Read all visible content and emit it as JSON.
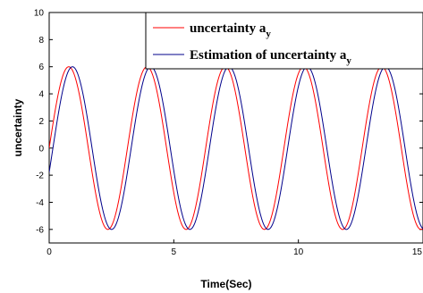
{
  "chart_data": {
    "type": "line",
    "title": "",
    "xlabel": "Time(Sec)",
    "ylabel": "uncertainty",
    "xlim": [
      0,
      15
    ],
    "ylim": [
      -7,
      10
    ],
    "x_ticks": [
      "0",
      "5",
      "10",
      "15"
    ],
    "y_ticks": [
      "-6",
      "-4",
      "-2",
      "0",
      "2",
      "4",
      "6",
      "8",
      "10"
    ],
    "grid": false,
    "legend_position": "top-right",
    "series": [
      {
        "name": "uncertainty a",
        "name_subscript": "y",
        "color": "#ff0000",
        "amplitude": 6,
        "period": 3.14,
        "phase_shift": 0,
        "x": [
          0,
          0.4,
          0.8,
          1.2,
          1.6,
          2.0,
          2.4,
          2.8,
          3.2,
          3.6,
          4.0,
          4.4,
          4.8,
          5.2,
          5.6,
          6.0,
          6.4,
          6.8,
          7.2,
          7.6,
          8.0,
          8.4,
          8.8,
          9.2,
          9.6,
          10.0,
          10.4,
          10.8,
          11.2,
          11.6,
          12.0,
          12.4,
          12.8,
          13.2,
          13.6,
          14.0,
          14.4,
          14.8,
          15.0
        ],
        "y": [
          0,
          4.3,
          6.0,
          4.0,
          -0.3,
          -4.5,
          -6.0,
          -3.8,
          0.7,
          4.8,
          5.9,
          3.4,
          -1.2,
          -5.1,
          -5.8,
          -3.0,
          1.6,
          5.3,
          5.7,
          2.6,
          -2.0,
          -5.5,
          -5.6,
          -2.1,
          2.4,
          5.7,
          5.4,
          1.7,
          -2.8,
          -5.8,
          -5.2,
          -1.2,
          3.2,
          5.9,
          5.0,
          0.8,
          -3.6,
          -6.0,
          -5.5
        ]
      },
      {
        "name": "Estimation of uncertainty a",
        "name_subscript": "y",
        "color": "#00008b",
        "amplitude": 6,
        "period": 3.14,
        "phase_shift": 0.15,
        "x": [
          0,
          0.4,
          0.8,
          1.2,
          1.6,
          2.0,
          2.4,
          2.8,
          3.2,
          3.6,
          4.0,
          4.4,
          4.8,
          5.2,
          5.6,
          6.0,
          6.4,
          6.8,
          7.2,
          7.6,
          8.0,
          8.4,
          8.8,
          9.2,
          9.6,
          10.0,
          10.4,
          10.8,
          11.2,
          11.6,
          12.0,
          12.4,
          12.8,
          13.2,
          13.6,
          14.0,
          14.4,
          14.8,
          15.0
        ],
        "y": [
          -1.7,
          2.9,
          5.8,
          4.9,
          1.2,
          -3.3,
          -5.9,
          -4.7,
          -0.8,
          3.7,
          6.0,
          4.4,
          0.3,
          -4.0,
          -6.0,
          -4.1,
          0.1,
          4.3,
          5.9,
          3.7,
          -0.5,
          -4.6,
          -5.9,
          -3.3,
          1.0,
          4.9,
          5.8,
          2.9,
          -1.4,
          -5.2,
          -5.6,
          -2.5,
          1.9,
          5.5,
          5.5,
          2.0,
          -2.4,
          -5.7,
          -6.0
        ]
      }
    ]
  }
}
